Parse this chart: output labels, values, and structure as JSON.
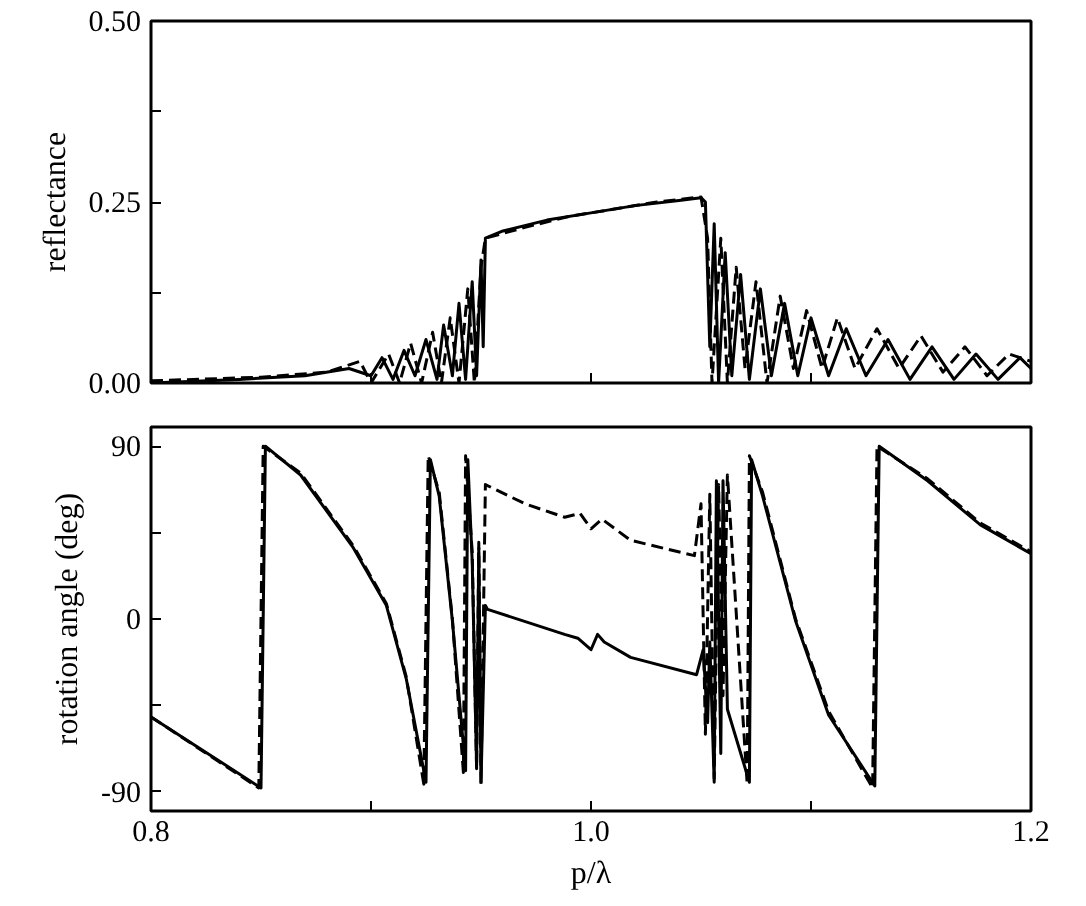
{
  "chart_data": [
    {
      "type": "line",
      "ylabel": "reflectance",
      "xlim": [
        0.8,
        1.2
      ],
      "ylim": [
        0,
        0.5
      ],
      "tick_labels": "y",
      "xticks": [
        {
          "value": 0.8,
          "label": null
        },
        {
          "value": 0.9,
          "label": null
        },
        {
          "value": 1.0,
          "label": null
        },
        {
          "value": 1.1,
          "label": null
        },
        {
          "value": 1.2,
          "label": null
        }
      ],
      "yticks": [
        {
          "value": 0,
          "label": "0.00"
        },
        {
          "value": 0.125,
          "label": null
        },
        {
          "value": 0.25,
          "label": "0.25"
        },
        {
          "value": 0.375,
          "label": null
        },
        {
          "value": 0.5,
          "label": "0.50"
        }
      ],
      "marker": "none",
      "series": [
        {
          "color": "#000000",
          "line_style": "solid",
          "x": [
            0.8,
            0.84,
            0.87,
            0.89,
            0.9,
            0.905,
            0.91,
            0.915,
            0.92,
            0.925,
            0.93,
            0.933,
            0.937,
            0.94,
            0.943,
            0.946,
            0.948,
            0.95,
            0.951,
            0.952,
            0.96,
            0.98,
            1.0,
            1.02,
            1.04,
            1.05,
            1.052,
            1.054,
            1.056,
            1.058,
            1.061,
            1.064,
            1.068,
            1.072,
            1.077,
            1.082,
            1.088,
            1.094,
            1.1,
            1.108,
            1.116,
            1.125,
            1.135,
            1.145,
            1.155,
            1.165,
            1.175,
            1.185,
            1.195,
            1.2
          ],
          "values": [
            0.0,
            0.005,
            0.01,
            0.02,
            0.01,
            0.035,
            0.005,
            0.045,
            0.01,
            0.06,
            0.005,
            0.08,
            0.01,
            0.11,
            0.005,
            0.14,
            0.01,
            0.17,
            0.05,
            0.2,
            0.21,
            0.225,
            0.235,
            0.245,
            0.252,
            0.256,
            0.25,
            0.05,
            0.22,
            0.0,
            0.18,
            0.01,
            0.15,
            0.005,
            0.13,
            0.01,
            0.11,
            0.01,
            0.09,
            0.01,
            0.075,
            0.01,
            0.06,
            0.005,
            0.05,
            0.005,
            0.04,
            0.005,
            0.035,
            0.02
          ]
        },
        {
          "color": "#000000",
          "line_style": "dashed",
          "x": [
            0.8,
            0.85,
            0.88,
            0.895,
            0.9,
            0.908,
            0.913,
            0.918,
            0.923,
            0.928,
            0.932,
            0.936,
            0.94,
            0.944,
            0.947,
            0.95,
            0.952,
            0.97,
            0.99,
            1.01,
            1.03,
            1.05,
            1.053,
            1.055,
            1.059,
            1.062,
            1.066,
            1.07,
            1.075,
            1.08,
            1.086,
            1.092,
            1.098,
            1.105,
            1.112,
            1.12,
            1.13,
            1.14,
            1.15,
            1.16,
            1.17,
            1.18,
            1.19,
            1.2
          ],
          "values": [
            0.003,
            0.008,
            0.015,
            0.03,
            0.0,
            0.04,
            0.0,
            0.055,
            0.0,
            0.07,
            0.0,
            0.09,
            0.0,
            0.13,
            0.0,
            0.16,
            0.2,
            0.215,
            0.23,
            0.24,
            0.25,
            0.257,
            0.2,
            0.0,
            0.2,
            0.0,
            0.16,
            0.02,
            0.14,
            0.0,
            0.12,
            0.02,
            0.1,
            0.02,
            0.09,
            0.02,
            0.075,
            0.02,
            0.065,
            0.015,
            0.05,
            0.01,
            0.04,
            0.03
          ]
        }
      ]
    },
    {
      "type": "line",
      "xlabel": "p/λ",
      "ylabel": "rotation angle (deg)",
      "xlim": [
        0.8,
        1.2
      ],
      "ylim": [
        -100,
        100
      ],
      "xticks": [
        0.8,
        {
          "value": 0.9,
          "label": null
        },
        {
          "value": 1.0,
          "label": "1.0"
        },
        {
          "value": 1.1,
          "label": null
        },
        1.2
      ],
      "yticks": [
        -90,
        {
          "value": -45,
          "label": null
        },
        0,
        {
          "value": 45,
          "label": null
        },
        90
      ],
      "marker": "none",
      "series": [
        {
          "color": "#000000",
          "line_style": "solid",
          "x": [
            0.8,
            0.85,
            0.852,
            0.868,
            0.892,
            0.907,
            0.916,
            0.925,
            0.927,
            0.931,
            0.937,
            0.943,
            0.944,
            0.946,
            0.948,
            0.949,
            0.95,
            0.952,
            0.953,
            0.988,
            0.994,
            1.0,
            1.003,
            1.006,
            1.018,
            1.048,
            1.051,
            1.053,
            1.054,
            1.056,
            1.057,
            1.059,
            1.06,
            1.062,
            1.072,
            1.073,
            1.078,
            1.093,
            1.108,
            1.129,
            1.131,
            1.153,
            1.177,
            1.2
          ],
          "values": [
            -51,
            -88,
            90,
            75,
            37,
            7,
            -31,
            -85,
            83,
            64,
            -1,
            -79,
            83,
            30,
            -77,
            37,
            -85,
            7,
            5,
            -8,
            -10,
            -16,
            -8,
            -12,
            -20,
            -29,
            -16,
            -54,
            -12,
            -85,
            72,
            -70,
            72,
            -47,
            -85,
            83,
            64,
            -1,
            -50,
            -87,
            90,
            72,
            49,
            34
          ]
        },
        {
          "color": "#000000",
          "line_style": "dashed",
          "x": [
            0.8,
            0.849,
            0.851,
            0.868,
            0.892,
            0.907,
            0.916,
            0.924,
            0.926,
            0.931,
            0.937,
            0.942,
            0.943,
            0.946,
            0.948,
            0.949,
            0.95,
            0.952,
            0.97,
            0.988,
            0.995,
            1.0,
            1.005,
            1.018,
            1.047,
            1.05,
            1.052,
            1.054,
            1.056,
            1.058,
            1.06,
            1.062,
            1.071,
            1.072,
            1.078,
            1.093,
            1.108,
            1.128,
            1.13,
            1.153,
            1.177,
            1.2
          ],
          "values": [
            -51,
            -88,
            90,
            76,
            38,
            8,
            -30,
            -86,
            85,
            66,
            0,
            -80,
            85,
            35,
            -78,
            40,
            -86,
            70,
            60,
            53,
            55,
            47,
            52,
            41,
            33,
            60,
            -60,
            65,
            -83,
            70,
            -40,
            75,
            -86,
            85,
            66,
            0,
            -48,
            -88,
            90,
            73,
            50,
            35
          ]
        }
      ]
    }
  ]
}
